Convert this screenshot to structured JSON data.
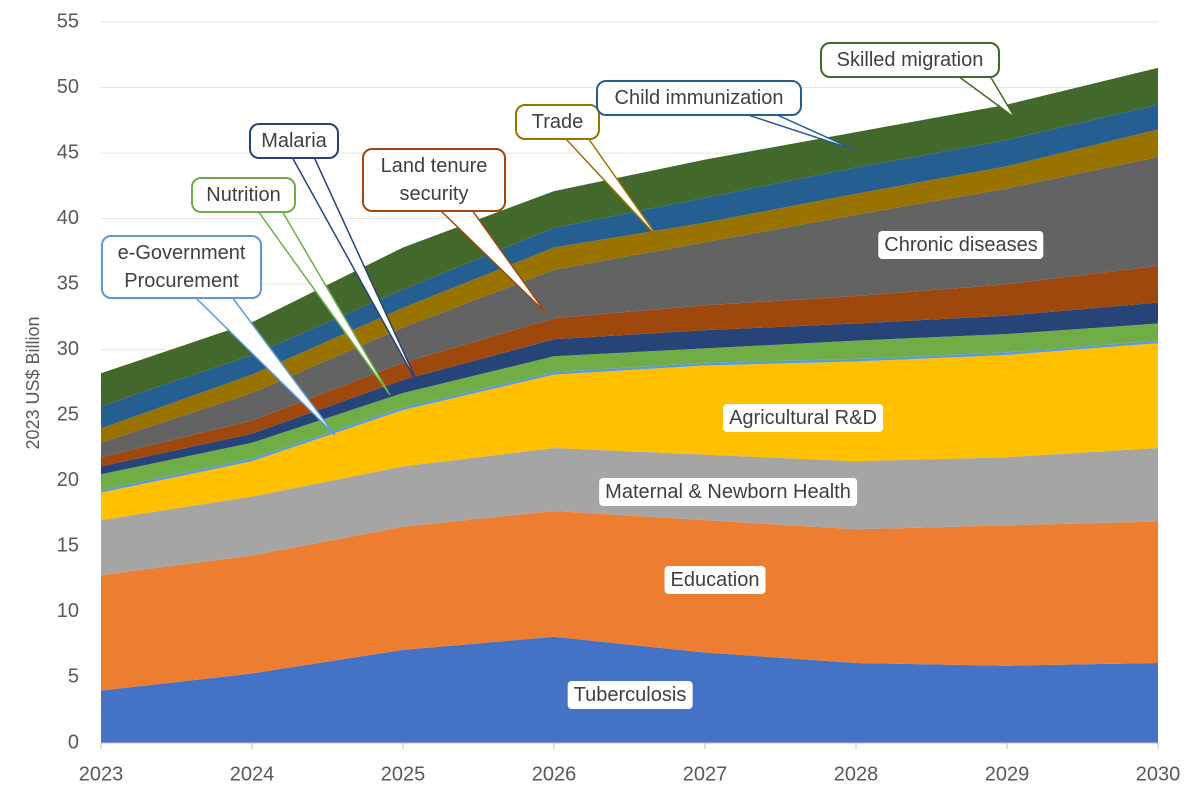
{
  "chart_data": {
    "type": "stacked_area",
    "y_label": "2023 US$ Billion",
    "x": [
      2023,
      2024,
      2025,
      2026,
      2027,
      2028,
      2029,
      2030
    ],
    "xlim": [
      2023,
      2030
    ],
    "xticks": [
      2023,
      2024,
      2025,
      2026,
      2027,
      2028,
      2029,
      2030
    ],
    "ylim": [
      0,
      55
    ],
    "yticks": [
      0,
      5,
      10,
      15,
      20,
      25,
      30,
      35,
      40,
      45,
      50,
      55
    ],
    "grid": true,
    "series": [
      {
        "name": "Tuberculosis",
        "color": "#4472c4",
        "values": [
          4.0,
          5.3,
          7.1,
          8.1,
          6.9,
          6.1,
          5.9,
          6.1
        ]
      },
      {
        "name": "Education",
        "color": "#ed7d31",
        "values": [
          8.8,
          9.0,
          9.4,
          9.6,
          10.1,
          10.2,
          10.7,
          10.8
        ]
      },
      {
        "name": "Maternal & Newborn Health",
        "color": "#a5a5a5",
        "values": [
          4.2,
          4.5,
          4.6,
          4.8,
          5.0,
          5.2,
          5.2,
          5.6
        ]
      },
      {
        "name": "Agricultural R&D",
        "color": "#ffc000",
        "values": [
          2.1,
          2.7,
          4.3,
          5.6,
          6.8,
          7.6,
          7.8,
          8.0
        ]
      },
      {
        "name": "e-Government Procurement",
        "color": "#5b9bd5",
        "values": [
          0.2,
          0.2,
          0.2,
          0.2,
          0.2,
          0.2,
          0.2,
          0.2
        ]
      },
      {
        "name": "Nutrition",
        "color": "#70ad47",
        "values": [
          1.2,
          1.2,
          1.1,
          1.2,
          1.1,
          1.4,
          1.4,
          1.3
        ]
      },
      {
        "name": "Malaria",
        "color": "#264478",
        "values": [
          0.6,
          0.7,
          1.0,
          1.3,
          1.4,
          1.3,
          1.4,
          1.6
        ]
      },
      {
        "name": "Land tenure security",
        "color": "#9e480e",
        "values": [
          0.7,
          1.0,
          1.3,
          1.6,
          1.9,
          2.1,
          2.4,
          2.8
        ]
      },
      {
        "name": "Chronic diseases",
        "color": "#636363",
        "values": [
          1.1,
          2.1,
          2.7,
          3.7,
          4.8,
          6.2,
          7.3,
          8.3
        ]
      },
      {
        "name": "Trade",
        "color": "#997300",
        "values": [
          1.1,
          1.4,
          1.5,
          1.7,
          1.5,
          1.6,
          1.7,
          2.1
        ]
      },
      {
        "name": "Child immunization",
        "color": "#255e91",
        "values": [
          1.7,
          1.5,
          1.4,
          1.5,
          1.9,
          2.0,
          2.0,
          1.9
        ]
      },
      {
        "name": "Skilled migration",
        "color": "#43682b",
        "values": [
          2.5,
          2.5,
          3.2,
          2.8,
          2.9,
          2.7,
          2.7,
          2.8
        ]
      }
    ]
  }
}
